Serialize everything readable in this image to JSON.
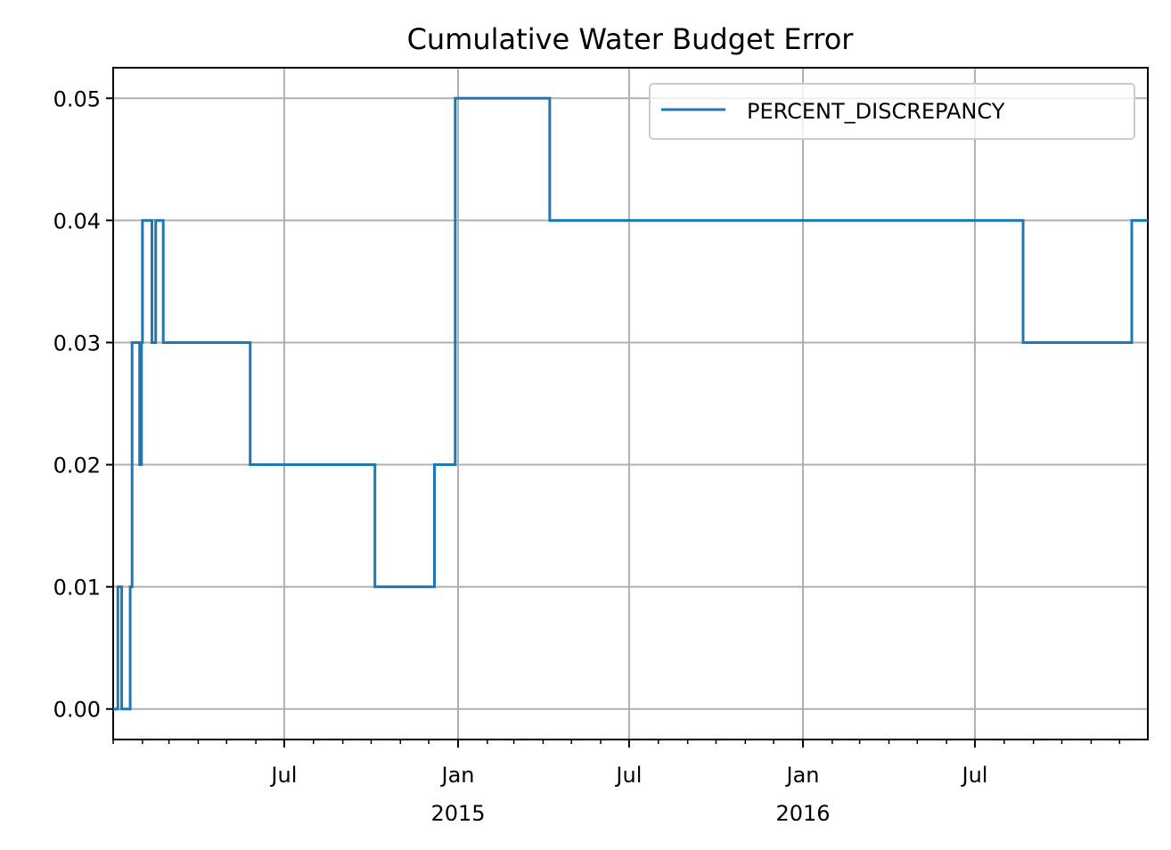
{
  "chart_data": {
    "type": "line",
    "drawstyle": "steps-post",
    "title": "Cumulative Water Budget Error",
    "xlabel": "",
    "ylabel": "",
    "xlim": [
      "2014-01-01",
      "2016-12-31"
    ],
    "ylim": [
      -0.0025,
      0.0525
    ],
    "grid": true,
    "legend_position": "top-right",
    "x_ticks": [
      {
        "date": "2014-07-01",
        "label": "Jul",
        "sublabel": ""
      },
      {
        "date": "2015-01-01",
        "label": "Jan",
        "sublabel": "2015"
      },
      {
        "date": "2015-07-01",
        "label": "Jul",
        "sublabel": ""
      },
      {
        "date": "2016-01-01",
        "label": "Jan",
        "sublabel": "2016"
      },
      {
        "date": "2016-07-01",
        "label": "Jul",
        "sublabel": ""
      }
    ],
    "y_ticks": [
      {
        "value": 0.0,
        "label": "0.00"
      },
      {
        "value": 0.01,
        "label": "0.01"
      },
      {
        "value": 0.02,
        "label": "0.02"
      },
      {
        "value": 0.03,
        "label": "0.03"
      },
      {
        "value": 0.04,
        "label": "0.04"
      },
      {
        "value": 0.05,
        "label": "0.05"
      }
    ],
    "series": [
      {
        "name": "PERCENT_DISCREPANCY",
        "color": "#1f77b4",
        "points": [
          {
            "x": "2014-01-01",
            "y": 0.0
          },
          {
            "x": "2014-01-06",
            "y": 0.01
          },
          {
            "x": "2014-01-10",
            "y": 0.0
          },
          {
            "x": "2014-01-19",
            "y": 0.01
          },
          {
            "x": "2014-01-21",
            "y": 0.03
          },
          {
            "x": "2014-01-29",
            "y": 0.02
          },
          {
            "x": "2014-01-31",
            "y": 0.03
          },
          {
            "x": "2014-02-01",
            "y": 0.04
          },
          {
            "x": "2014-02-11",
            "y": 0.03
          },
          {
            "x": "2014-02-15",
            "y": 0.04
          },
          {
            "x": "2014-02-23",
            "y": 0.03
          },
          {
            "x": "2014-05-26",
            "y": 0.02
          },
          {
            "x": "2014-10-05",
            "y": 0.01
          },
          {
            "x": "2014-12-07",
            "y": 0.02
          },
          {
            "x": "2014-12-29",
            "y": 0.05
          },
          {
            "x": "2015-04-08",
            "y": 0.04
          },
          {
            "x": "2016-08-21",
            "y": 0.03
          },
          {
            "x": "2016-12-14",
            "y": 0.04
          },
          {
            "x": "2016-12-31",
            "y": 0.04
          }
        ]
      }
    ]
  }
}
